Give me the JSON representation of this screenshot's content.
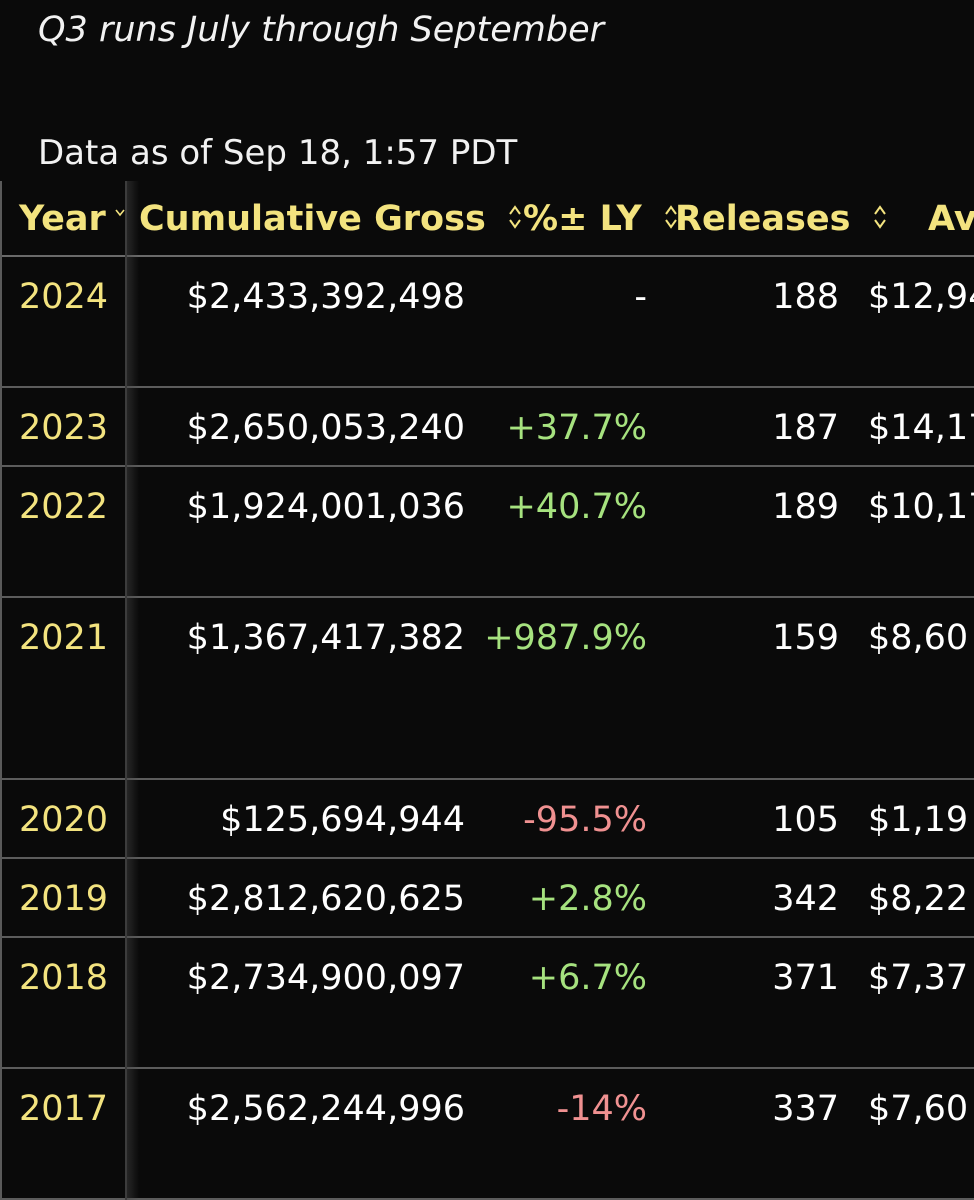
{
  "note": "Q3 runs July through September",
  "as_of": "Data as of Sep 18, 1:57 PDT",
  "columns": {
    "year": "Year",
    "gross": "Cumulative Gross",
    "pct": "%± LY",
    "releases": "Releases",
    "average": "Av"
  },
  "rows": [
    {
      "year": "2024",
      "gross": "$2,433,392,498",
      "pct": "-",
      "releases": "188",
      "average": "$12,94"
    },
    {
      "year": "2023",
      "gross": "$2,650,053,240",
      "pct": "+37.7%",
      "releases": "187",
      "average": "$14,17"
    },
    {
      "year": "2022",
      "gross": "$1,924,001,036",
      "pct": "+40.7%",
      "releases": "189",
      "average": "$10,17"
    },
    {
      "year": "2021",
      "gross": "$1,367,417,382",
      "pct": "+987.9%",
      "releases": "159",
      "average": "$8,60"
    },
    {
      "year": "2020",
      "gross": "$125,694,944",
      "pct": "-95.5%",
      "releases": "105",
      "average": "$1,19"
    },
    {
      "year": "2019",
      "gross": "$2,812,620,625",
      "pct": "+2.8%",
      "releases": "342",
      "average": "$8,22"
    },
    {
      "year": "2018",
      "gross": "$2,734,900,097",
      "pct": "+6.7%",
      "releases": "371",
      "average": "$7,37"
    },
    {
      "year": "2017",
      "gross": "$2,562,244,996",
      "pct": "-14%",
      "releases": "337",
      "average": "$7,60"
    }
  ],
  "colors": {
    "background": "#0a0a0a",
    "header_text": "#f3e37f",
    "positive": "#a6e27f",
    "negative": "#f09191"
  },
  "icons": {
    "sort": "sort-updown-icon",
    "year_sort": "chevron-down-icon"
  }
}
